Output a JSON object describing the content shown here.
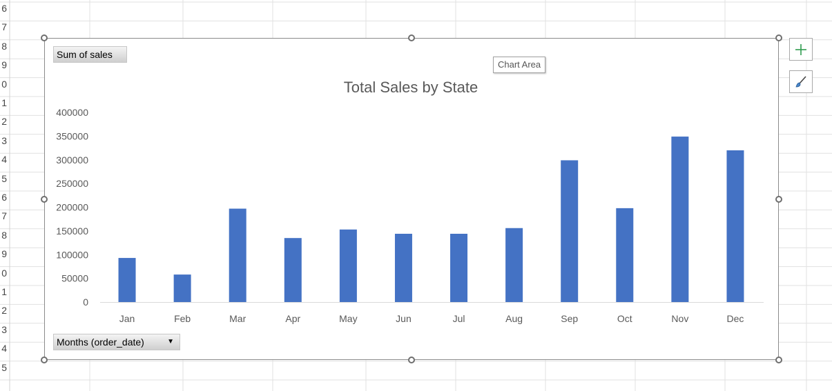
{
  "sheet": {
    "row_numbers": [
      "6",
      "7",
      "8",
      "9",
      "0",
      "1",
      "2",
      "3",
      "4",
      "5",
      "6",
      "7",
      "8",
      "9",
      "0",
      "1",
      "2",
      "3",
      "4",
      "5"
    ]
  },
  "pivot": {
    "value_field": "Sum of sales",
    "axis_field": "Months (order_date)"
  },
  "tooltip": "Chart Area",
  "colors": {
    "bar": "#4472C4",
    "axis_text": "#595959",
    "title": "#595959"
  },
  "chart_data": {
    "type": "bar",
    "title": "Total Sales by State",
    "categories": [
      "Jan",
      "Feb",
      "Mar",
      "Apr",
      "May",
      "Jun",
      "Jul",
      "Aug",
      "Sep",
      "Oct",
      "Nov",
      "Dec"
    ],
    "values": [
      93000,
      58000,
      197000,
      135000,
      153000,
      144000,
      144000,
      156000,
      299000,
      198000,
      349000,
      320000
    ],
    "ylim": [
      0,
      400000
    ],
    "yticks": [
      "0",
      "50000",
      "100000",
      "150000",
      "200000",
      "250000",
      "300000",
      "350000",
      "400000"
    ],
    "grid": false,
    "legend": "none"
  }
}
